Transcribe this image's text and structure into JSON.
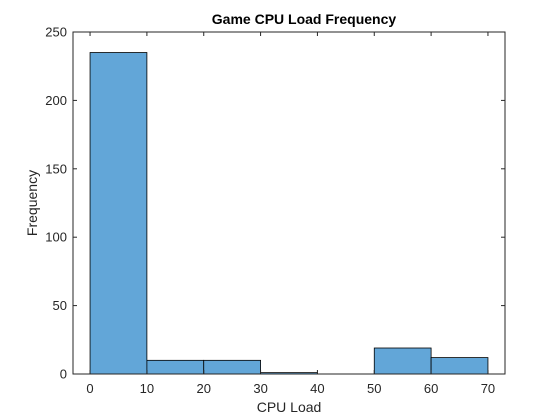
{
  "chart_data": {
    "type": "bar",
    "title": "Game CPU Load Frequency",
    "xlabel": "CPU Load",
    "ylabel": "Frequency",
    "xlim": [
      -3,
      73
    ],
    "ylim": [
      0,
      250
    ],
    "xticks": [
      0,
      10,
      20,
      30,
      40,
      50,
      60,
      70
    ],
    "yticks": [
      0,
      50,
      100,
      150,
      200,
      250
    ],
    "bins": [
      {
        "x0": 0,
        "x1": 10,
        "value": 235
      },
      {
        "x0": 10,
        "x1": 20,
        "value": 10
      },
      {
        "x0": 20,
        "x1": 30,
        "value": 10
      },
      {
        "x0": 30,
        "x1": 40,
        "value": 1
      },
      {
        "x0": 40,
        "x1": 50,
        "value": 0
      },
      {
        "x0": 50,
        "x1": 60,
        "value": 19
      },
      {
        "x0": 60,
        "x1": 70,
        "value": 12
      }
    ],
    "bar_color": "#62a6d8",
    "grid": false
  }
}
